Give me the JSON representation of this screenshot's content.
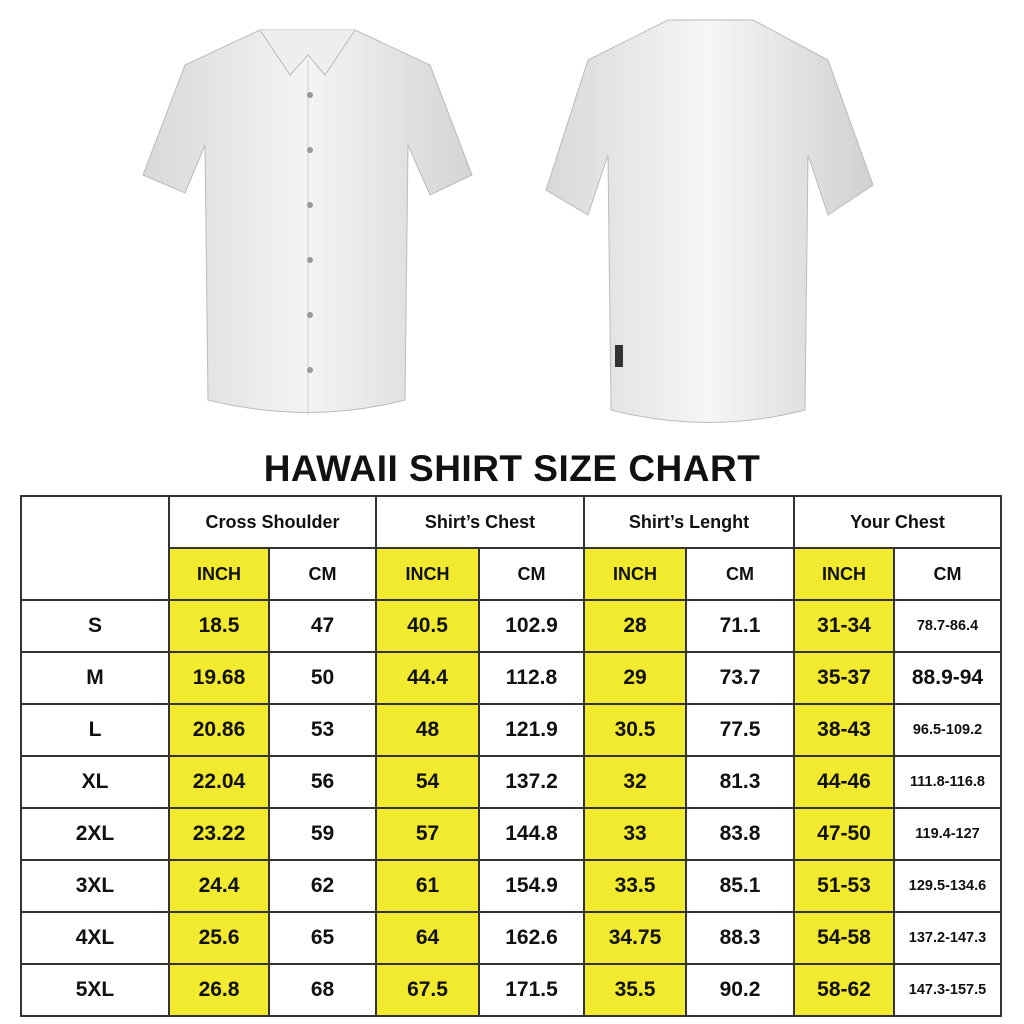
{
  "title": "HAWAII SHIRT SIZE CHART",
  "images": {
    "front": "shirt-front",
    "back": "shirt-back"
  },
  "colors": {
    "inch_highlight": "#f2ea2e",
    "border": "#333333"
  },
  "groups": [
    "Cross Shoulder",
    "Shirt’s Chest",
    "Shirt’s Lenght",
    "Your Chest"
  ],
  "units": [
    "INCH",
    "CM",
    "INCH",
    "CM",
    "INCH",
    "CM",
    "INCH",
    "CM"
  ],
  "rows": [
    {
      "size": "S",
      "cells": [
        "18.5",
        "47",
        "40.5",
        "102.9",
        "28",
        "71.1",
        "31-34",
        "78.7-86.4"
      ]
    },
    {
      "size": "M",
      "cells": [
        "19.68",
        "50",
        "44.4",
        "112.8",
        "29",
        "73.7",
        "35-37",
        "88.9-94"
      ]
    },
    {
      "size": "L",
      "cells": [
        "20.86",
        "53",
        "48",
        "121.9",
        "30.5",
        "77.5",
        "38-43",
        "96.5-109.2"
      ]
    },
    {
      "size": "XL",
      "cells": [
        "22.04",
        "56",
        "54",
        "137.2",
        "32",
        "81.3",
        "44-46",
        "111.8-116.8"
      ]
    },
    {
      "size": "2XL",
      "cells": [
        "23.22",
        "59",
        "57",
        "144.8",
        "33",
        "83.8",
        "47-50",
        "119.4-127"
      ]
    },
    {
      "size": "3XL",
      "cells": [
        "24.4",
        "62",
        "61",
        "154.9",
        "33.5",
        "85.1",
        "51-53",
        "129.5-134.6"
      ]
    },
    {
      "size": "4XL",
      "cells": [
        "25.6",
        "65",
        "64",
        "162.6",
        "34.75",
        "88.3",
        "54-58",
        "137.2-147.3"
      ]
    },
    {
      "size": "5XL",
      "cells": [
        "26.8",
        "68",
        "67.5",
        "171.5",
        "35.5",
        "90.2",
        "58-62",
        "147.3-157.5"
      ]
    }
  ]
}
